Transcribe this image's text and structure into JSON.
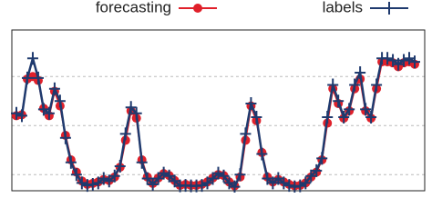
{
  "chart_data": {
    "type": "line",
    "series": [
      {
        "name": "forecasting",
        "color": "#e0202a",
        "marker": "circle",
        "values": [
          2.2,
          2.22,
          2.95,
          3.0,
          2.92,
          2.35,
          2.2,
          2.7,
          2.4,
          1.8,
          1.3,
          1.05,
          0.87,
          0.8,
          0.82,
          0.85,
          0.9,
          0.88,
          0.95,
          1.15,
          1.7,
          2.3,
          2.15,
          1.3,
          0.95,
          0.82,
          0.93,
          1.02,
          0.98,
          0.88,
          0.78,
          0.8,
          0.78,
          0.78,
          0.8,
          0.85,
          0.93,
          1.0,
          0.98,
          0.85,
          0.77,
          0.95,
          1.7,
          2.4,
          2.1,
          1.45,
          0.95,
          0.85,
          0.9,
          0.85,
          0.8,
          0.77,
          0.78,
          0.83,
          0.95,
          1.05,
          1.3,
          2.05,
          2.75,
          2.45,
          2.15,
          2.3,
          2.75,
          2.95,
          2.3,
          2.15,
          2.75,
          3.3,
          3.3,
          3.28,
          3.2,
          3.28,
          3.3,
          3.25
        ]
      },
      {
        "name": "labels",
        "color": "#1f3a6e",
        "marker": "plus",
        "values": [
          2.25,
          2.2,
          2.97,
          3.37,
          2.97,
          2.33,
          2.25,
          2.75,
          2.5,
          1.75,
          1.25,
          1,
          0.83,
          0.78,
          0.8,
          0.83,
          0.92,
          0.87,
          0.97,
          1.17,
          1.83,
          2.37,
          2.25,
          1.25,
          0.92,
          0.8,
          0.92,
          1.03,
          0.97,
          0.87,
          0.77,
          0.78,
          0.77,
          0.77,
          0.78,
          0.83,
          0.92,
          1.03,
          0.97,
          0.83,
          0.75,
          1,
          1.83,
          2.45,
          2.17,
          1.42,
          0.92,
          0.83,
          0.92,
          0.83,
          0.78,
          0.75,
          0.77,
          0.83,
          0.97,
          1.08,
          1.33,
          2.17,
          2.83,
          2.5,
          2.17,
          2.33,
          2.83,
          3.08,
          2.33,
          2.17,
          2.83,
          3.37,
          3.37,
          3.33,
          3.25,
          3.33,
          3.37,
          3.3
        ]
      }
    ],
    "ylim": [
      0.67,
      3.95
    ],
    "yticks": [
      1,
      2,
      3
    ],
    "grid": true,
    "legend": "top"
  }
}
